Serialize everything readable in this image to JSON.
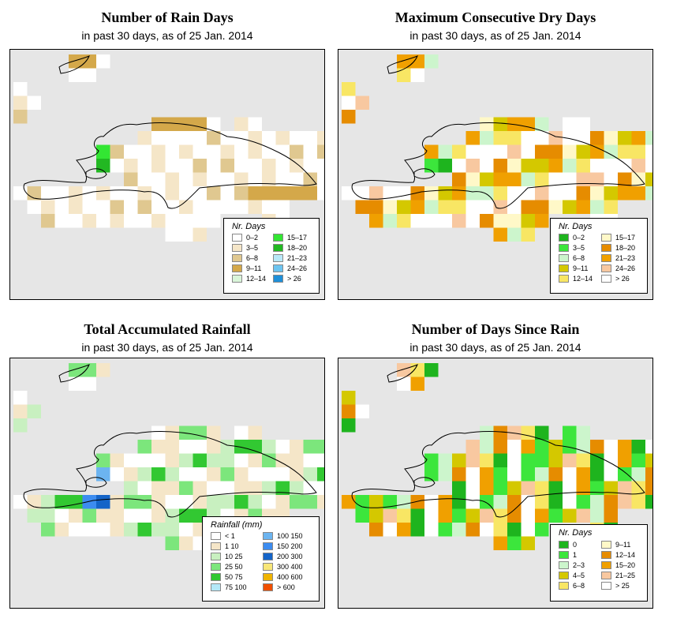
{
  "panels": [
    {
      "title": "Number of Rain Days",
      "subtitle": "in past 30 days, as of  25 Jan. 2014",
      "legend_title": "Nr. Days",
      "legend": [
        {
          "label": "0–2",
          "color": "#ffffff"
        },
        {
          "label": "3–5",
          "color": "#f5e6c8"
        },
        {
          "label": "6–8",
          "color": "#e0c890"
        },
        {
          "label": "9–11",
          "color": "#d4a84a"
        },
        {
          "label": "12–14",
          "color": "#d9f5d9"
        },
        {
          "label": "15–17",
          "color": "#33e633"
        },
        {
          "label": "18–20",
          "color": "#22b822"
        },
        {
          "label": "21–23",
          "color": "#b8e8f8"
        },
        {
          "label": "24–26",
          "color": "#6cc4f0"
        },
        {
          "label": "> 26",
          "color": "#1e8fd8"
        }
      ]
    },
    {
      "title": "Maximum Consecutive Dry Days",
      "subtitle": "in past 30 days, as of  25 Jan. 2014",
      "legend_title": "Nr. Days",
      "legend": [
        {
          "label": "0–2",
          "color": "#1eb41e"
        },
        {
          "label": "3–5",
          "color": "#3ce63c"
        },
        {
          "label": "6–8",
          "color": "#ccf5cc"
        },
        {
          "label": "9–11",
          "color": "#d4c800"
        },
        {
          "label": "12–14",
          "color": "#f8e664"
        },
        {
          "label": "15–17",
          "color": "#fff8c8"
        },
        {
          "label": "18–20",
          "color": "#e68c00"
        },
        {
          "label": "21–23",
          "color": "#f0a000"
        },
        {
          "label": "24–26",
          "color": "#f8c8a0"
        },
        {
          "label": "> 26",
          "color": "#ffffff"
        }
      ]
    },
    {
      "title": "Total Accumulated Rainfall",
      "subtitle": "in past 30 days, as of  25 Jan. 2014",
      "legend_title": "Rainfall (mm)",
      "legend": [
        {
          "label": "< 1",
          "color": "#ffffff"
        },
        {
          "label": "1  10",
          "color": "#f5e6c8"
        },
        {
          "label": "10  25",
          "color": "#c8f0c0"
        },
        {
          "label": "25  50",
          "color": "#7ce67c"
        },
        {
          "label": "50  75",
          "color": "#32c832"
        },
        {
          "label": "75  100",
          "color": "#b4e8f8"
        },
        {
          "label": "100  150",
          "color": "#6cb4f0"
        },
        {
          "label": "150  200",
          "color": "#3c8cf0"
        },
        {
          "label": "200  300",
          "color": "#1464c8"
        },
        {
          "label": "300  400",
          "color": "#f8e678"
        },
        {
          "label": "400  600",
          "color": "#f0b400"
        },
        {
          "label": "> 600",
          "color": "#f05000"
        }
      ]
    },
    {
      "title": "Number of Days Since Rain",
      "subtitle": "in past 30 days, as of  25 Jan. 2014",
      "legend_title": "Nr. Days",
      "legend": [
        {
          "label": "0",
          "color": "#1eb41e"
        },
        {
          "label": "1",
          "color": "#3ce63c"
        },
        {
          "label": "2–3",
          "color": "#ccf5cc"
        },
        {
          "label": "4–5",
          "color": "#d4c800"
        },
        {
          "label": "6–8",
          "color": "#f8e664"
        },
        {
          "label": "9–11",
          "color": "#fff8c8"
        },
        {
          "label": "12–14",
          "color": "#e68c00"
        },
        {
          "label": "15–20",
          "color": "#f0a000"
        },
        {
          "label": "21–25",
          "color": "#f8c8a0"
        },
        {
          "label": "> 25",
          "color": "#ffffff"
        }
      ]
    }
  ]
}
